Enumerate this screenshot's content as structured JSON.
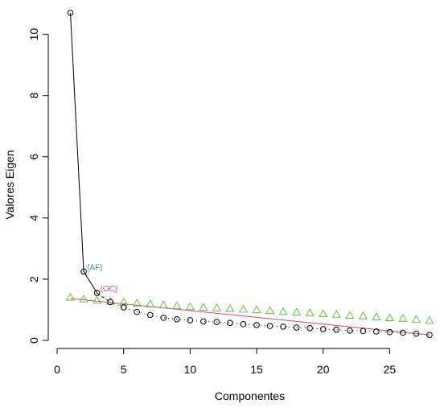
{
  "chart_data": {
    "type": "scatter",
    "xlabel": "Componentes",
    "ylabel": "Valores Eigen",
    "xlim": [
      0,
      28
    ],
    "ylim": [
      0,
      10.7
    ],
    "xticks": [
      "0",
      "5",
      "10",
      "15",
      "20",
      "25"
    ],
    "yticks": [
      "0",
      "2",
      "4",
      "6",
      "8",
      "10"
    ],
    "grid": false,
    "series": [
      {
        "marker": "circle",
        "color": "#000000",
        "x": [
          1,
          2,
          3,
          4,
          5,
          6,
          7,
          8,
          9,
          10,
          11,
          12,
          13,
          14,
          15,
          16,
          17,
          18,
          19,
          20,
          21,
          22,
          23,
          24,
          25,
          26,
          27,
          28
        ],
        "values": [
          10.7,
          2.25,
          1.55,
          1.25,
          1.08,
          0.93,
          0.83,
          0.74,
          0.69,
          0.66,
          0.62,
          0.6,
          0.57,
          0.53,
          0.5,
          0.47,
          0.45,
          0.42,
          0.4,
          0.37,
          0.35,
          0.32,
          0.31,
          0.29,
          0.27,
          0.25,
          0.22,
          0.18
        ]
      },
      {
        "marker": "triangle",
        "color": "#61c13e",
        "x": [
          1,
          2,
          3,
          4,
          5,
          6,
          7,
          8,
          9,
          10,
          11,
          12,
          13,
          14,
          15,
          16,
          17,
          18,
          19,
          20,
          21,
          22,
          23,
          24,
          25,
          26,
          27,
          28
        ],
        "values": [
          1.4,
          1.34,
          1.3,
          1.27,
          1.24,
          1.21,
          1.18,
          1.15,
          1.12,
          1.09,
          1.07,
          1.05,
          1.03,
          1.01,
          0.99,
          0.96,
          0.93,
          0.91,
          0.89,
          0.86,
          0.84,
          0.81,
          0.79,
          0.76,
          0.73,
          0.71,
          0.68,
          0.64
        ]
      },
      {
        "marker": "line",
        "color": "#d14a6b",
        "x": [
          1,
          28
        ],
        "values": [
          1.37,
          0.18
        ]
      }
    ],
    "connector": {
      "color": "#000000",
      "solid_segment_x": [
        1,
        3
      ],
      "dashed_segment_x": [
        3,
        4
      ],
      "dotted_segment_x": [
        4,
        28
      ]
    },
    "annotations": [
      {
        "text": "(AF)",
        "x": 2,
        "y": 2.25,
        "color": "#3a86c8"
      },
      {
        "text": "(OC)",
        "x": 3,
        "y": 1.55,
        "color": "#d14a6b"
      }
    ]
  }
}
